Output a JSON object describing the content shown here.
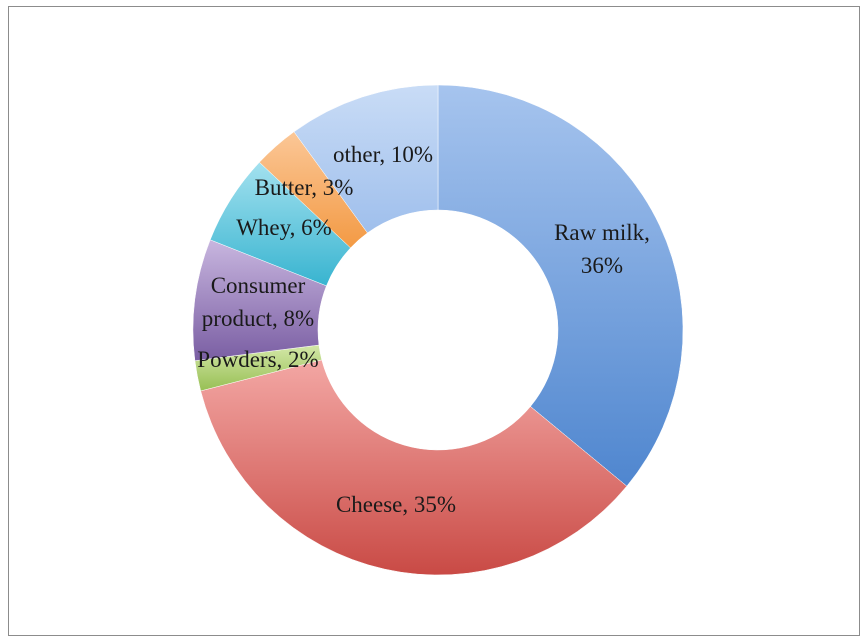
{
  "chart_data": {
    "type": "pie",
    "variant": "donut",
    "categories": [
      "Raw milk",
      "Cheese",
      "Powders",
      "Consumer product",
      "Whey",
      "Butter",
      "other"
    ],
    "values": [
      36,
      35,
      2,
      8,
      6,
      3,
      10
    ],
    "unit": "%",
    "labels": [
      "Raw milk,\n36%",
      "Cheese, 35%",
      "Powders, 2%",
      "Consumer\nproduct, 8%",
      "Whey, 6%",
      "Butter, 3%",
      "other, 10%"
    ],
    "colors": [
      "#4f86cf",
      "#c94a45",
      "#97bf54",
      "#7a5ea3",
      "#38b4d0",
      "#f39a44",
      "#9fbfec"
    ],
    "colors_light": [
      "#a6c4ee",
      "#f3a7a4",
      "#d4e8a8",
      "#c8b6df",
      "#a3e1ef",
      "#fbc797",
      "#c9dcf6"
    ],
    "start_angle_deg": 0,
    "direction": "clockwise",
    "legend": "none",
    "title": ""
  }
}
